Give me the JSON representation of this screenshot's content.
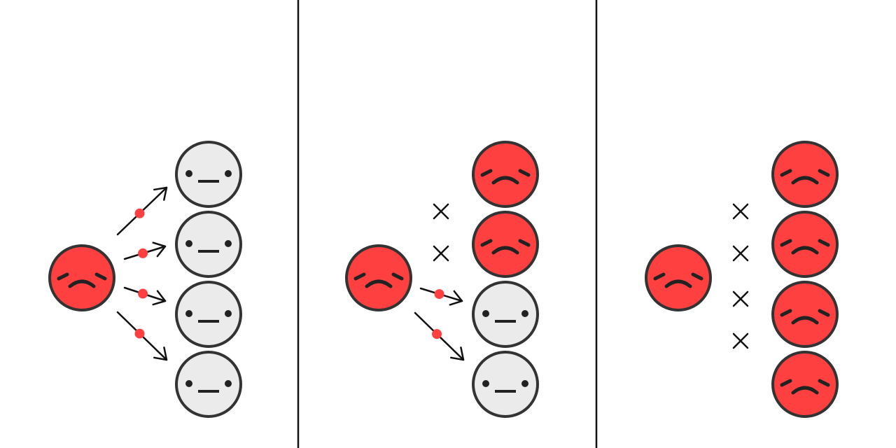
{
  "colors": {
    "background": "#ffffff",
    "sick_fill": "#ff4040",
    "healthy_fill": "#ebebeb",
    "outline": "#333333",
    "feature": "#222222",
    "arrow": "#111111",
    "virus_dot": "#ff4040",
    "divider": "#111111",
    "blocked_mark": "#111111"
  },
  "icons": {
    "sick_face": "sad-face-icon",
    "healthy_face": "neutral-face-icon",
    "transmission": "arrow-icon",
    "virus": "virus-dot-icon",
    "blocked": "cross-icon"
  },
  "panels": [
    {
      "id": "panel-1",
      "targets": [
        {
          "state": "healthy",
          "link": "arrow"
        },
        {
          "state": "healthy",
          "link": "arrow"
        },
        {
          "state": "healthy",
          "link": "arrow"
        },
        {
          "state": "healthy",
          "link": "arrow"
        }
      ]
    },
    {
      "id": "panel-2",
      "targets": [
        {
          "state": "sick",
          "link": "none"
        },
        {
          "state": "sick",
          "link": "cross"
        },
        {
          "state": "healthy",
          "link": "arrow"
        },
        {
          "state": "healthy",
          "link": "arrow"
        }
      ]
    },
    {
      "id": "panel-3",
      "targets": [
        {
          "state": "sick",
          "link": "cross"
        },
        {
          "state": "sick",
          "link": "cross"
        },
        {
          "state": "sick",
          "link": "cross"
        },
        {
          "state": "sick",
          "link": "cross"
        }
      ]
    }
  ]
}
